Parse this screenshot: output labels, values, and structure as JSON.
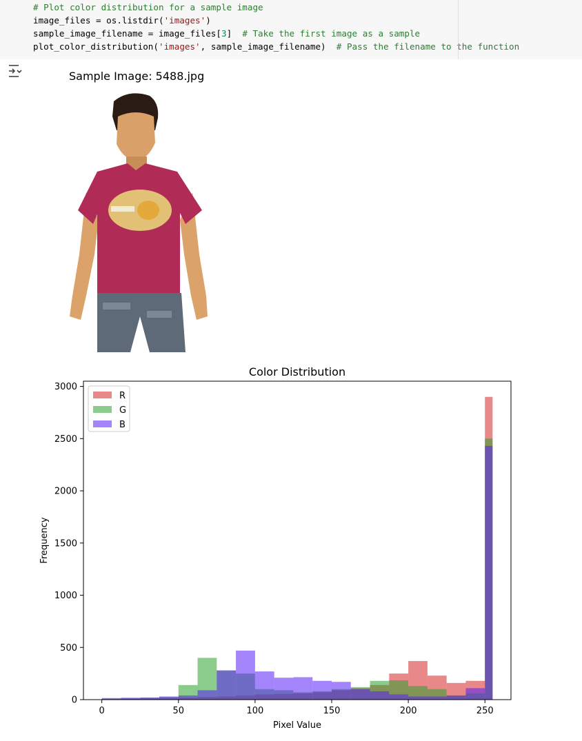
{
  "code": {
    "lines": [
      [
        {
          "t": "# Plot color distribution for a sample image",
          "c": "cm"
        }
      ],
      [
        {
          "t": "image_files = os.listdir(",
          "c": ""
        },
        {
          "t": "'images'",
          "c": "st"
        },
        {
          "t": ")",
          "c": ""
        }
      ],
      [
        {
          "t": "sample_image_filename = image_files[",
          "c": ""
        },
        {
          "t": "3",
          "c": "nm"
        },
        {
          "t": "]  ",
          "c": ""
        },
        {
          "t": "# Take the first image as a sample",
          "c": "cm"
        }
      ],
      [
        {
          "t": "plot_color_distribution(",
          "c": ""
        },
        {
          "t": "'images'",
          "c": "st"
        },
        {
          "t": ", sample_image_filename)  ",
          "c": ""
        },
        {
          "t": "# Pass the filename to the function",
          "c": "cm"
        }
      ]
    ]
  },
  "output": {
    "toggle_icon": "output-toggle-icon",
    "image_title": "Sample Image: 5488.jpg"
  },
  "chart_data": {
    "type": "bar",
    "title": "Color Distribution",
    "xlabel": "Pixel Value",
    "ylabel": "Frequency",
    "xlim": [
      -12,
      267
    ],
    "ylim": [
      0,
      3050
    ],
    "xticks": [
      0,
      50,
      100,
      150,
      200,
      250
    ],
    "yticks": [
      0,
      500,
      1000,
      1500,
      2000,
      2500,
      3000
    ],
    "legend_position": "top-left",
    "bin_edges": [
      0,
      12.5,
      25,
      37.5,
      50,
      62.5,
      75,
      87.5,
      100,
      112.5,
      125,
      137.5,
      150,
      162.5,
      175,
      187.5,
      200,
      212.5,
      225,
      237.5,
      250,
      255
    ],
    "series": [
      {
        "name": "R",
        "color": "#d62728",
        "values": [
          5,
          8,
          10,
          15,
          20,
          25,
          30,
          40,
          50,
          55,
          60,
          70,
          90,
          110,
          140,
          250,
          370,
          230,
          160,
          180,
          2900
        ]
      },
      {
        "name": "G",
        "color": "#2ca02c",
        "values": [
          10,
          15,
          20,
          25,
          140,
          400,
          280,
          250,
          100,
          90,
          70,
          80,
          100,
          120,
          180,
          185,
          130,
          100,
          40,
          60,
          2500
        ]
      },
      {
        "name": "B",
        "color": "#5a1ff5",
        "values": [
          15,
          18,
          20,
          30,
          40,
          90,
          280,
          470,
          270,
          210,
          215,
          180,
          170,
          100,
          80,
          50,
          30,
          30,
          40,
          110,
          2430
        ]
      }
    ]
  }
}
